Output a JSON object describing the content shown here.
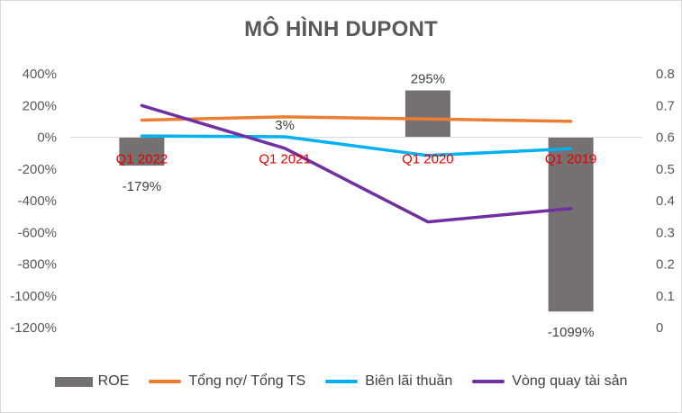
{
  "chart_data": {
    "type": "bar",
    "title": "MÔ HÌNH DUPONT",
    "categories": [
      "Q1 2022",
      "Q1 2021",
      "Q1 2020",
      "Q1 2019"
    ],
    "y_left": {
      "ylim": [
        -1200,
        400
      ],
      "ticks": [
        400,
        200,
        0,
        -200,
        -400,
        -600,
        -800,
        -1000,
        -1200
      ],
      "tick_labels": [
        "400%",
        "200%",
        "0%",
        "-200%",
        "-400%",
        "-600%",
        "-800%",
        "-1000%",
        "-1200%"
      ]
    },
    "y_right": {
      "ylim": [
        0,
        0.8
      ],
      "ticks": [
        0.8,
        0.7,
        0.6,
        0.5,
        0.4,
        0.3,
        0.2,
        0.1,
        0
      ],
      "tick_labels": [
        "0.8",
        "0.7",
        "0.6",
        "0.5",
        "0.4",
        "0.3",
        "0.2",
        "0.1",
        "0"
      ]
    },
    "series": [
      {
        "name": "ROE",
        "kind": "bar",
        "axis": "left",
        "color": "#767171",
        "values": [
          -179,
          3,
          295,
          -1099
        ],
        "data_labels": [
          "-179%",
          "3%",
          "295%",
          "-1099%"
        ]
      },
      {
        "name": "Tổng nợ/ Tổng TS",
        "kind": "line",
        "axis": "left",
        "color": "#ed7d31",
        "values": [
          108,
          128,
          115,
          100
        ]
      },
      {
        "name": "Biên lãi thuần",
        "kind": "line",
        "axis": "left",
        "color": "#00b0f0",
        "values": [
          8,
          3,
          -115,
          -72
        ]
      },
      {
        "name": "Vòng quay tài sản",
        "kind": "line",
        "axis": "right",
        "color": "#7030a0",
        "values": [
          0.7,
          0.565,
          0.333,
          0.375
        ]
      }
    ],
    "legend_position": "bottom",
    "grid": false
  }
}
